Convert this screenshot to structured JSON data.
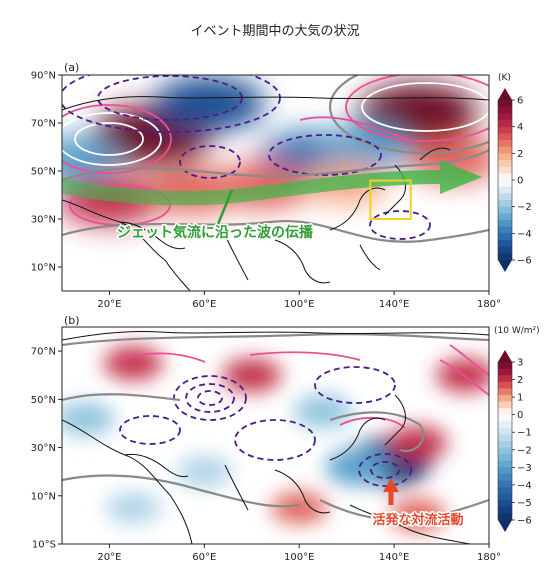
{
  "title": "イベント期間中の大気の状況",
  "chart_data": [
    {
      "type": "heatmap",
      "panel_label": "(a)",
      "unit": "(K)",
      "colorbar_ticks": [
        "6",
        "4",
        "2",
        "0",
        "−2",
        "−4",
        "−6"
      ],
      "colorbar_range": [
        -6,
        6
      ],
      "xticks": [
        "20°E",
        "60°E",
        "100°E",
        "140°E",
        "180°"
      ],
      "yticks": [
        "90°N",
        "70°N",
        "50°N",
        "30°N",
        "10°N"
      ],
      "xlim": [
        0,
        180
      ],
      "ylim": [
        0,
        90
      ],
      "annotation": "ジェット気流に沿った波の伝播",
      "anomalies": [
        {
          "lon": 38,
          "lat": 65,
          "value": 6
        },
        {
          "lon": 62,
          "lat": 78,
          "value": -5
        },
        {
          "lon": 150,
          "lat": 74,
          "value": 6
        },
        {
          "lon": 105,
          "lat": 56,
          "value": -4
        },
        {
          "lon": 128,
          "lat": 60,
          "value": -3
        },
        {
          "lon": 20,
          "lat": 38,
          "value": 4
        },
        {
          "lon": 55,
          "lat": 42,
          "value": 3
        },
        {
          "lon": 85,
          "lat": 44,
          "value": 3
        },
        {
          "lon": 120,
          "lat": 45,
          "value": 2
        },
        {
          "lon": 165,
          "lat": 55,
          "value": 3
        },
        {
          "lon": 5,
          "lat": 55,
          "value": -3
        }
      ],
      "box": {
        "lon": [
          130,
          147
        ],
        "lat": [
          30,
          46
        ]
      }
    },
    {
      "type": "heatmap",
      "panel_label": "(b)",
      "unit": "(10 W/m²)",
      "colorbar_ticks": [
        "3",
        "2",
        "1",
        "0",
        "−1",
        "−2",
        "−3",
        "−4",
        "−5",
        "−6"
      ],
      "colorbar_range": [
        -6,
        3
      ],
      "xticks": [
        "20°E",
        "60°E",
        "100°E",
        "140°E",
        "180°"
      ],
      "yticks": [
        "70°N",
        "50°N",
        "30°N",
        "10°N",
        "10°S"
      ],
      "xlim": [
        0,
        180
      ],
      "ylim": [
        -10,
        80
      ],
      "annotation": "活発な対流活動",
      "anomalies": [
        {
          "lon": 138,
          "lat": 24,
          "value": -6
        },
        {
          "lon": 125,
          "lat": 22,
          "value": -3
        },
        {
          "lon": 30,
          "lat": 65,
          "value": 2
        },
        {
          "lon": 80,
          "lat": 60,
          "value": 2
        },
        {
          "lon": 150,
          "lat": 32,
          "value": 2
        },
        {
          "lon": 10,
          "lat": 42,
          "value": -2
        },
        {
          "lon": 110,
          "lat": 45,
          "value": -2
        },
        {
          "lon": 170,
          "lat": 60,
          "value": 2
        },
        {
          "lon": 60,
          "lat": 20,
          "value": -1.5
        },
        {
          "lon": 100,
          "lat": 5,
          "value": 1.5
        },
        {
          "lon": 30,
          "lat": 5,
          "value": -1.5
        },
        {
          "lon": 150,
          "lat": 2,
          "value": 1.5
        }
      ]
    }
  ],
  "colors": {
    "warm_max": "#6b0a25",
    "cool_max": "#0d2f6b",
    "jet_arrow": "#3fb548",
    "annotation_a": "#2e9e34",
    "annotation_b": "#e8472c",
    "box": "#f0d21e",
    "contour_neg": "#4b1c8c",
    "contour_pos": "#ea4f96",
    "contour_zero": "#8a8a8a"
  }
}
